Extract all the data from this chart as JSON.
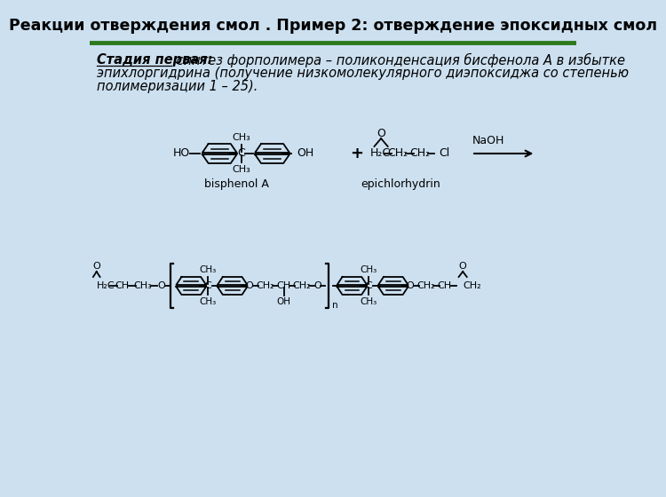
{
  "title": "Реакции отверждения смол . Пример 2: отверждение эпоксидных смол",
  "title_fontsize": 12.5,
  "bg_color": "#cce0f0",
  "title_bg": "#cce0f0",
  "line_color": "#2d7a1e",
  "line_thickness": 3.5,
  "text_line1_bold": "Стадия первая:",
  "text_line1_rest": " синтез форполимера – поликонденсация бисфенола А в избытке",
  "text_line2": "эпихлоргидрина (получение низкомолекулярного диэпоксиджа со степенью",
  "text_line3": "полимеризации 1 – 25).",
  "body_fontsize": 10.5,
  "label_bisphenol": "bisphenol A",
  "label_epichlorhydrin": "epichlorhydrin",
  "label_naoh": "NaOH"
}
